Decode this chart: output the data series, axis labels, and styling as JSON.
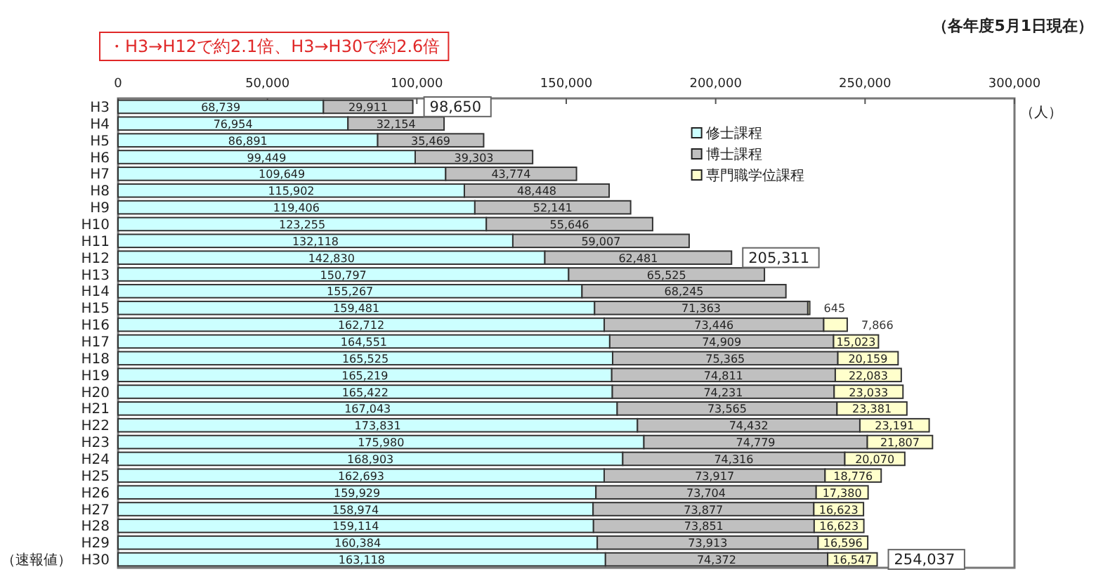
{
  "chart_data": {
    "type": "bar",
    "orientation": "horizontal",
    "stacked": true,
    "legend": "top",
    "xlabel": "（人）",
    "annotations": [
      "・H3→H12で約2.1倍、H3→H30で約2.6倍",
      "（各年度5月1日現在）",
      "（速報値）"
    ],
    "xlim": [
      0,
      300000
    ],
    "xticks": [
      0,
      {
        "value": 50000,
        "label": "50,000"
      },
      {
        "value": 100000,
        "label": "100,000"
      },
      {
        "value": 150000,
        "label": "150,000"
      },
      {
        "value": 200000,
        "label": "200,000"
      },
      {
        "value": 250000,
        "label": "250,000"
      },
      {
        "value": 300000,
        "label": "300,000"
      }
    ],
    "categories": [
      "H3",
      "H4",
      "H5",
      "H6",
      "H7",
      "H8",
      "H9",
      "H10",
      "H11",
      "H12",
      "H13",
      "H14",
      "H15",
      "H16",
      "H17",
      "H18",
      "H19",
      "H20",
      "H21",
      "H22",
      "H23",
      "H24",
      "H25",
      "H26",
      "H27",
      "H28",
      "H29",
      "H30"
    ],
    "series": [
      {
        "name": "修士課程",
        "color": "#ccffff",
        "values": [
          68739,
          76954,
          86891,
          99449,
          109649,
          115902,
          119406,
          123255,
          132118,
          142830,
          150797,
          155267,
          159481,
          162712,
          164551,
          165525,
          165219,
          165422,
          167043,
          173831,
          175980,
          168903,
          162693,
          159929,
          158974,
          159114,
          160384,
          163118
        ],
        "value_labels": [
          "68,739",
          "76,954",
          "86,891",
          "99,449",
          "109,649",
          "115,902",
          "119,406",
          "123,255",
          "132,118",
          "142,830",
          "150,797",
          "155,267",
          "159,481",
          "162,712",
          "164,551",
          "165,525",
          "165,219",
          "165,422",
          "167,043",
          "173,831",
          "175,980",
          "168,903",
          "162,693",
          "159,929",
          "158,974",
          "159,114",
          "160,384",
          "163,118"
        ]
      },
      {
        "name": "博士課程",
        "color": "#c0c0c0",
        "values": [
          29911,
          32154,
          35469,
          39303,
          43774,
          48448,
          52141,
          55646,
          59007,
          62481,
          65525,
          68245,
          71363,
          73446,
          74909,
          75365,
          74811,
          74231,
          73565,
          74432,
          74779,
          74316,
          73917,
          73704,
          73877,
          73851,
          73913,
          74372
        ],
        "value_labels": [
          "29,911",
          "32,154",
          "35,469",
          "39,303",
          "43,774",
          "48,448",
          "52,141",
          "55,646",
          "59,007",
          "62,481",
          "65,525",
          "68,245",
          "71,363",
          "73,446",
          "74,909",
          "75,365",
          "74,811",
          "74,231",
          "73,565",
          "74,432",
          "74,779",
          "74,316",
          "73,917",
          "73,704",
          "73,877",
          "73,851",
          "73,913",
          "74,372"
        ]
      },
      {
        "name": "専門職学位課程",
        "color": "#ffffcc",
        "values": [
          null,
          null,
          null,
          null,
          null,
          null,
          null,
          null,
          null,
          null,
          null,
          null,
          645,
          7866,
          15023,
          20159,
          22083,
          23033,
          23381,
          23191,
          21807,
          20070,
          18776,
          17380,
          16623,
          16623,
          16596,
          16547
        ],
        "value_labels": [
          null,
          null,
          null,
          null,
          null,
          null,
          null,
          null,
          null,
          null,
          null,
          null,
          "645",
          "7,866",
          "15,023",
          "20,159",
          "22,083",
          "23,033",
          "23,381",
          "23,191",
          "21,807",
          "20,070",
          "18,776",
          "17,380",
          "16,623",
          "16,623",
          "16,596",
          "16,547"
        ]
      }
    ],
    "totals": [
      "98,650",
      null,
      null,
      null,
      null,
      null,
      null,
      null,
      null,
      "205,311",
      null,
      null,
      null,
      null,
      null,
      null,
      null,
      null,
      null,
      null,
      null,
      null,
      null,
      null,
      null,
      null,
      null,
      "254,037"
    ]
  }
}
